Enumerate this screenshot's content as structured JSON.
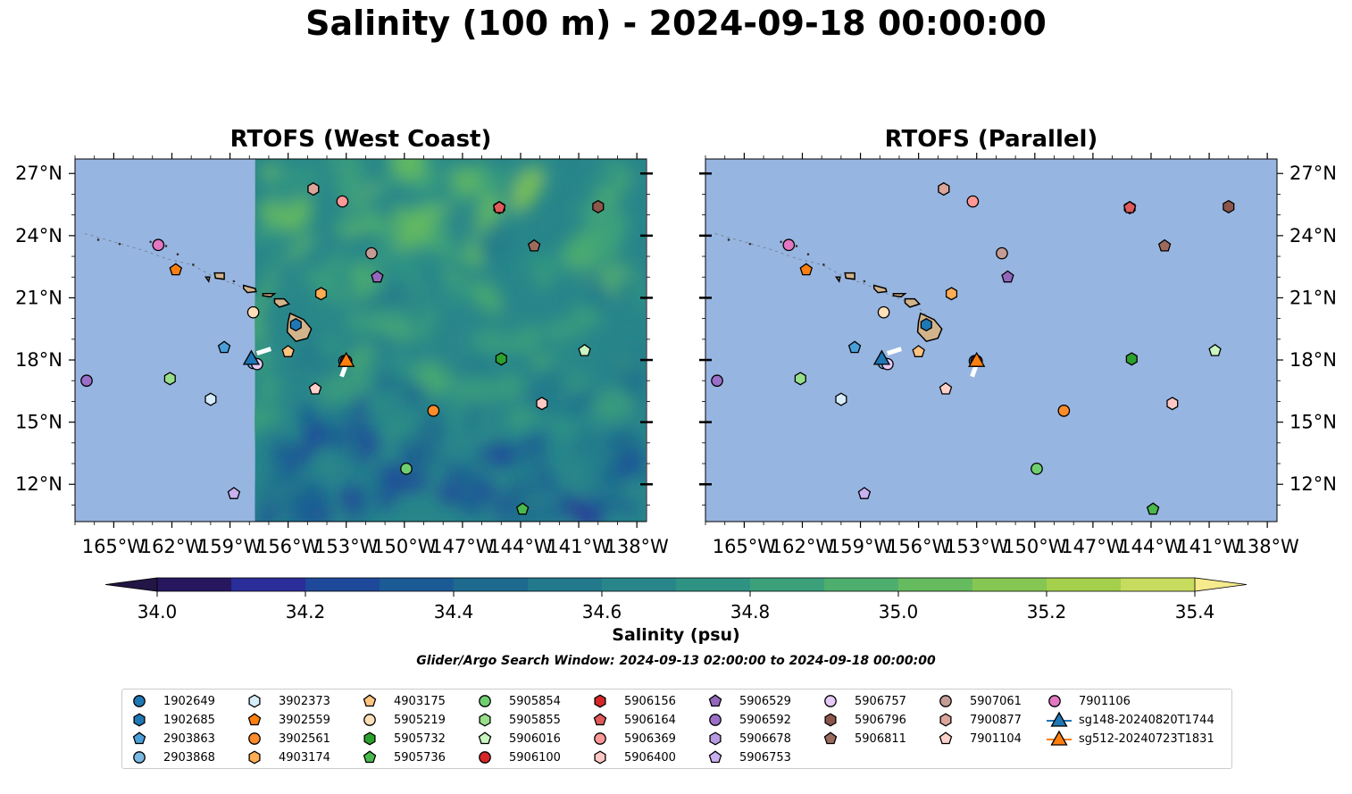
{
  "title": "Salinity (100 m) - 2024-09-18 00:00:00",
  "panels": [
    {
      "title": "RTOFS (West Coast)",
      "has_model_field": true
    },
    {
      "title": "RTOFS (Parallel)",
      "has_model_field": false
    }
  ],
  "colorbar": {
    "label": "Salinity (psu)",
    "min": 34.0,
    "max": 35.4,
    "step": 0.1,
    "tick_values": [
      34.0,
      34.2,
      34.4,
      34.6,
      34.8,
      35.0,
      35.2,
      35.4
    ],
    "tick_labels": [
      "34.0",
      "34.2",
      "34.4",
      "34.6",
      "34.8",
      "35.0",
      "35.2",
      "35.4"
    ],
    "colors": [
      "#26175f",
      "#2a2d9a",
      "#1e489a",
      "#1b5b95",
      "#1d6a8e",
      "#227a8c",
      "#28868a",
      "#2f9384",
      "#3ca07b",
      "#4eae6e",
      "#66bb5f",
      "#86c652",
      "#a4d04c",
      "#c7dc5f"
    ],
    "under_color": "#231545",
    "over_color": "#f5ea8c",
    "extend": "both"
  },
  "search_window": "Glider/Argo Search Window: 2024-09-13 02:00:00 to 2024-09-18 00:00:00",
  "map": {
    "lon_range": [
      -167,
      -137.5
    ],
    "lat_range": [
      10.2,
      27.7
    ],
    "lon_ticks": [
      -165,
      -162,
      -159,
      -156,
      -153,
      -150,
      -147,
      -144,
      -141,
      -138
    ],
    "lon_tick_labels": [
      "165°W",
      "162°W",
      "159°W",
      "156°W",
      "153°W",
      "150°W",
      "147°W",
      "144°W",
      "141°W",
      "138°W"
    ],
    "lat_ticks": [
      12,
      15,
      18,
      21,
      24,
      27
    ],
    "lat_tick_labels": [
      "12°N",
      "15°N",
      "18°N",
      "21°N",
      "24°N",
      "27°N"
    ],
    "ocean_color": "#97b5e1",
    "land_color": "#d2b48c",
    "model_field_west_edge_lon": -157.7
  },
  "floats": [
    {
      "id": "1902649",
      "lon": -153.1,
      "lat": 17.95,
      "marker": "circle",
      "color": "#1f77b4"
    },
    {
      "id": "1902685",
      "lon": -155.6,
      "lat": 19.7,
      "marker": "hexagon",
      "color": "#1f77b4"
    },
    {
      "id": "2903863",
      "lon": -159.3,
      "lat": 18.6,
      "marker": "pentagon",
      "color": "#4a9fd8"
    },
    {
      "id": "2903868",
      "lon": -157.8,
      "lat": 17.85,
      "marker": "circle",
      "color": "#7ab9e0"
    },
    {
      "id": "3902373",
      "lon": -160.0,
      "lat": 16.1,
      "marker": "hexagon",
      "color": "#d7ecfa"
    },
    {
      "id": "3902559",
      "lon": -161.8,
      "lat": 22.35,
      "marker": "pentagon",
      "color": "#ff7f0e"
    },
    {
      "id": "3902561",
      "lon": -148.5,
      "lat": 15.55,
      "marker": "circle",
      "color": "#ff8c2a"
    },
    {
      "id": "4903174",
      "lon": -154.3,
      "lat": 21.2,
      "marker": "hexagon",
      "color": "#ffad55"
    },
    {
      "id": "4903175",
      "lon": -156.0,
      "lat": 18.4,
      "marker": "pentagon",
      "color": "#ffc47f"
    },
    {
      "id": "5905219",
      "lon": -157.8,
      "lat": 20.3,
      "marker": "circle",
      "color": "#ffdfb8"
    },
    {
      "id": "5905732",
      "lon": -145.0,
      "lat": 18.05,
      "marker": "hexagon",
      "color": "#2ca02c"
    },
    {
      "id": "5905736",
      "lon": -143.9,
      "lat": 10.8,
      "marker": "pentagon",
      "color": "#4ab84a"
    },
    {
      "id": "5905854",
      "lon": -149.9,
      "lat": 12.75,
      "marker": "circle",
      "color": "#6fcf6f"
    },
    {
      "id": "5905855",
      "lon": -162.1,
      "lat": 17.1,
      "marker": "hexagon",
      "color": "#98df8a"
    },
    {
      "id": "5906016",
      "lon": -140.7,
      "lat": 18.45,
      "marker": "pentagon",
      "color": "#c8f5c0"
    },
    {
      "id": "5906100",
      "lon": -153.0,
      "lat": 17.95,
      "marker": "circle",
      "color": "#d62728"
    },
    {
      "id": "5906156",
      "lon": -145.1,
      "lat": 25.35,
      "marker": "hexagon",
      "color": "#d62728"
    },
    {
      "id": "5906164",
      "lon": -145.1,
      "lat": 25.35,
      "marker": "pentagon",
      "color": "#e05a5a"
    },
    {
      "id": "5906369",
      "lon": -153.2,
      "lat": 25.65,
      "marker": "circle",
      "color": "#ff9896"
    },
    {
      "id": "5906400",
      "lon": -142.9,
      "lat": 15.9,
      "marker": "hexagon",
      "color": "#ffc8c5"
    },
    {
      "id": "5906529",
      "lon": -151.4,
      "lat": 22.0,
      "marker": "pentagon",
      "color": "#9467bd"
    },
    {
      "id": "5906592",
      "lon": -166.4,
      "lat": 17.0,
      "marker": "circle",
      "color": "#9a6fc8"
    },
    {
      "id": "5906678",
      "lon": -154.7,
      "lat": 26.25,
      "marker": "hexagon",
      "color": "#b89be0"
    },
    {
      "id": "5906753",
      "lon": -158.8,
      "lat": 11.55,
      "marker": "pentagon",
      "color": "#c9b0ef"
    },
    {
      "id": "5906757",
      "lon": -157.6,
      "lat": 17.8,
      "marker": "circle",
      "color": "#e6c9f5"
    },
    {
      "id": "5906796",
      "lon": -140.0,
      "lat": 25.4,
      "marker": "hexagon",
      "color": "#8c564b"
    },
    {
      "id": "5906811",
      "lon": -143.3,
      "lat": 23.5,
      "marker": "pentagon",
      "color": "#9d6a5e"
    },
    {
      "id": "5907061",
      "lon": -151.7,
      "lat": 23.15,
      "marker": "circle",
      "color": "#c49c94"
    },
    {
      "id": "7900877",
      "lon": -154.7,
      "lat": 26.25,
      "marker": "hexagon",
      "color": "#dba59a"
    },
    {
      "id": "7901104",
      "lon": -154.6,
      "lat": 16.6,
      "marker": "pentagon",
      "color": "#ffd1ca"
    },
    {
      "id": "7901106",
      "lon": -162.7,
      "lat": 23.55,
      "marker": "circle",
      "color": "#e377c2"
    }
  ],
  "gliders": [
    {
      "id": "sg148-20240820T1744",
      "lon": -157.9,
      "lat": 18.05,
      "color": "#1f77b4",
      "track": [
        [
          -157.5,
          18.35
        ],
        [
          -157.0,
          18.5
        ]
      ]
    },
    {
      "id": "sg512-20240723T1831",
      "lon": -153.0,
      "lat": 17.95,
      "color": "#ff7f0e",
      "track": [
        [
          -153.2,
          17.3
        ],
        [
          -153.0,
          17.8
        ]
      ]
    }
  ],
  "legend": [
    [
      "1902649",
      "1902685",
      "2903863",
      "2903868"
    ],
    [
      "3902373",
      "3902559",
      "3902561",
      "4903174"
    ],
    [
      "4903175",
      "5905219",
      "5905732",
      "5905736"
    ],
    [
      "5905854",
      "5905855",
      "5906016",
      "5906100"
    ],
    [
      "5906156",
      "5906164",
      "5906369",
      "5906400"
    ],
    [
      "5906529",
      "5906592",
      "5906678",
      "5906753"
    ],
    [
      "5906757",
      "5906796",
      "5906811"
    ],
    [
      "5907061",
      "7900877",
      "7901104"
    ],
    [
      "7901106",
      "sg148-20240820T1744",
      "sg512-20240723T1831"
    ]
  ]
}
